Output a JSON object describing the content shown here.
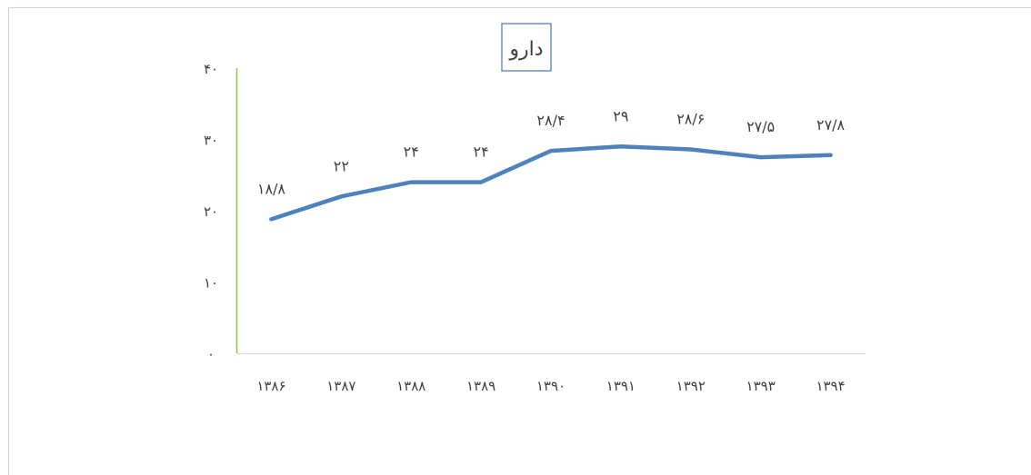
{
  "chart_data": {
    "type": "line",
    "title": "دارو",
    "categories": [
      "۱۳۸۶",
      "۱۳۸۷",
      "۱۳۸۸",
      "۱۳۸۹",
      "۱۳۹۰",
      "۱۳۹۱",
      "۱۳۹۲",
      "۱۳۹۳",
      "۱۳۹۴"
    ],
    "series": [
      {
        "values": [
          18.8,
          22,
          24,
          24,
          28.4,
          29,
          28.6,
          27.5,
          27.8
        ],
        "data_labels": [
          "۱۸/۸",
          "۲۲",
          "۲۴",
          "۲۴",
          "۲۸/۴",
          "۲۹",
          "۲۸/۶",
          "۲۷/۵",
          "۲۷/۸"
        ],
        "color": "#4F81BD"
      }
    ],
    "ylim": [
      0,
      40
    ],
    "y_ticks": [
      0,
      10,
      20,
      30,
      40
    ],
    "y_tick_labels": [
      "۰",
      "۱۰",
      "۲۰",
      "۳۰",
      "۴۰"
    ],
    "xlabel": "",
    "ylabel": "",
    "grid": false,
    "legend": "none",
    "colors": {
      "line": "#4F81BD",
      "y_axis": "#9BBB59",
      "x_axis": "#D9D9D9",
      "title_border": "#4F81BD",
      "frame": "#C9D6E8",
      "text": "#404040"
    }
  }
}
